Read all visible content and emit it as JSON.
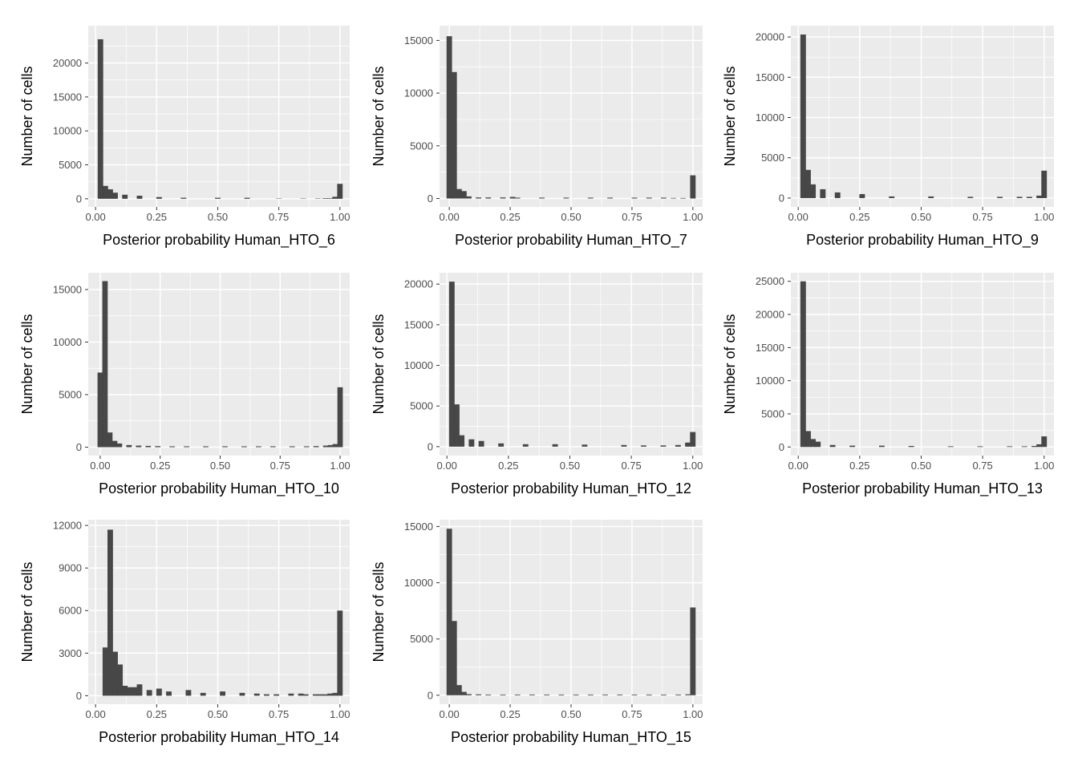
{
  "chart_data": [
    {
      "type": "bar",
      "xlabel": "Posterior probability Human_HTO_6",
      "ylabel": "Number of cells",
      "xlim": [
        -0.03,
        1.04
      ],
      "ylim": [
        -1200,
        25500
      ],
      "xticks": [
        "0.00",
        "0.25",
        "0.50",
        "0.75",
        "1.00"
      ],
      "yticks": [
        0,
        5000,
        10000,
        15000,
        20000
      ],
      "grid": true,
      "bins": [
        [
          0.02,
          23500
        ],
        [
          0.04,
          1900
        ],
        [
          0.06,
          1400
        ],
        [
          0.08,
          900
        ],
        [
          0.12,
          600
        ],
        [
          0.18,
          450
        ],
        [
          0.26,
          250
        ],
        [
          0.36,
          150
        ],
        [
          0.5,
          150
        ],
        [
          0.62,
          150
        ],
        [
          0.75,
          50
        ],
        [
          0.85,
          50
        ],
        [
          0.91,
          50
        ],
        [
          0.94,
          80
        ],
        [
          0.96,
          80
        ],
        [
          0.98,
          300
        ],
        [
          1.0,
          2200
        ]
      ]
    },
    {
      "type": "bar",
      "xlabel": "Posterior probability Human_HTO_7",
      "ylabel": "Number of cells",
      "xlim": [
        -0.04,
        1.04
      ],
      "ylim": [
        -800,
        16400
      ],
      "xticks": [
        "0.00",
        "0.25",
        "0.50",
        "0.75",
        "1.00"
      ],
      "yticks": [
        0,
        5000,
        10000,
        15000
      ],
      "grid": true,
      "bins": [
        [
          0.0,
          15400
        ],
        [
          0.02,
          12000
        ],
        [
          0.04,
          900
        ],
        [
          0.06,
          700
        ],
        [
          0.08,
          200
        ],
        [
          0.12,
          100
        ],
        [
          0.16,
          100
        ],
        [
          0.22,
          100
        ],
        [
          0.26,
          150
        ],
        [
          0.28,
          80
        ],
        [
          0.38,
          80
        ],
        [
          0.48,
          80
        ],
        [
          0.58,
          80
        ],
        [
          0.66,
          80
        ],
        [
          0.76,
          80
        ],
        [
          0.82,
          80
        ],
        [
          0.88,
          80
        ],
        [
          0.92,
          50
        ],
        [
          0.96,
          50
        ],
        [
          1.0,
          2200
        ]
      ]
    },
    {
      "type": "bar",
      "xlabel": "Posterior probability Human_HTO_9",
      "ylabel": "Number of cells",
      "xlim": [
        -0.03,
        1.04
      ],
      "ylim": [
        -1100,
        21400
      ],
      "xticks": [
        "0.00",
        "0.25",
        "0.50",
        "0.75",
        "1.00"
      ],
      "yticks": [
        0,
        5000,
        10000,
        15000,
        20000
      ],
      "grid": true,
      "bins": [
        [
          0.02,
          20300
        ],
        [
          0.04,
          3500
        ],
        [
          0.06,
          1700
        ],
        [
          0.1,
          1100
        ],
        [
          0.16,
          700
        ],
        [
          0.26,
          500
        ],
        [
          0.38,
          200
        ],
        [
          0.54,
          200
        ],
        [
          0.7,
          150
        ],
        [
          0.82,
          150
        ],
        [
          0.9,
          150
        ],
        [
          0.94,
          150
        ],
        [
          0.98,
          300
        ],
        [
          1.0,
          3400
        ]
      ]
    },
    {
      "type": "bar",
      "xlabel": "Posterior probability Human_HTO_10",
      "ylabel": "Number of cells",
      "xlim": [
        -0.05,
        1.04
      ],
      "ylim": [
        -800,
        16600
      ],
      "xticks": [
        "0.00",
        "0.25",
        "0.50",
        "0.75",
        "1.00"
      ],
      "yticks": [
        0,
        5000,
        10000,
        15000
      ],
      "grid": true,
      "bins": [
        [
          0.0,
          7100
        ],
        [
          0.02,
          15800
        ],
        [
          0.04,
          1400
        ],
        [
          0.06,
          600
        ],
        [
          0.08,
          350
        ],
        [
          0.12,
          200
        ],
        [
          0.16,
          150
        ],
        [
          0.2,
          120
        ],
        [
          0.24,
          100
        ],
        [
          0.3,
          80
        ],
        [
          0.36,
          80
        ],
        [
          0.44,
          80
        ],
        [
          0.52,
          80
        ],
        [
          0.6,
          80
        ],
        [
          0.66,
          80
        ],
        [
          0.72,
          80
        ],
        [
          0.8,
          80
        ],
        [
          0.86,
          80
        ],
        [
          0.9,
          100
        ],
        [
          0.94,
          150
        ],
        [
          0.96,
          200
        ],
        [
          0.98,
          300
        ],
        [
          1.0,
          5700
        ]
      ]
    },
    {
      "type": "bar",
      "xlabel": "Posterior probability Human_HTO_12",
      "ylabel": "Number of cells",
      "xlim": [
        -0.03,
        1.04
      ],
      "ylim": [
        -1100,
        21400
      ],
      "xticks": [
        "0.00",
        "0.25",
        "0.50",
        "0.75",
        "1.00"
      ],
      "yticks": [
        0,
        5000,
        10000,
        15000,
        20000
      ],
      "grid": true,
      "bins": [
        [
          0.02,
          20300
        ],
        [
          0.04,
          5200
        ],
        [
          0.06,
          1400
        ],
        [
          0.1,
          900
        ],
        [
          0.14,
          700
        ],
        [
          0.22,
          400
        ],
        [
          0.32,
          300
        ],
        [
          0.44,
          300
        ],
        [
          0.56,
          250
        ],
        [
          0.72,
          200
        ],
        [
          0.8,
          150
        ],
        [
          0.88,
          150
        ],
        [
          0.94,
          200
        ],
        [
          0.98,
          500
        ],
        [
          1.0,
          1800
        ]
      ]
    },
    {
      "type": "bar",
      "xlabel": "Posterior probability Human_HTO_13",
      "ylabel": "Number of cells",
      "xlim": [
        -0.03,
        1.04
      ],
      "ylim": [
        -1300,
        26300
      ],
      "xticks": [
        "0.00",
        "0.25",
        "0.50",
        "0.75",
        "1.00"
      ],
      "yticks": [
        0,
        5000,
        10000,
        15000,
        20000,
        25000
      ],
      "grid": true,
      "bins": [
        [
          0.02,
          25000
        ],
        [
          0.04,
          2400
        ],
        [
          0.06,
          1200
        ],
        [
          0.08,
          800
        ],
        [
          0.14,
          300
        ],
        [
          0.22,
          200
        ],
        [
          0.34,
          200
        ],
        [
          0.46,
          150
        ],
        [
          0.62,
          100
        ],
        [
          0.74,
          100
        ],
        [
          0.86,
          100
        ],
        [
          0.92,
          100
        ],
        [
          0.96,
          150
        ],
        [
          0.98,
          400
        ],
        [
          1.0,
          1600
        ]
      ]
    },
    {
      "type": "bar",
      "xlabel": "Posterior probability Human_HTO_14",
      "ylabel": "Number of cells",
      "xlim": [
        -0.03,
        1.04
      ],
      "ylim": [
        -600,
        12400
      ],
      "xticks": [
        "0.00",
        "0.25",
        "0.50",
        "0.75",
        "1.00"
      ],
      "yticks": [
        0,
        3000,
        6000,
        9000,
        12000
      ],
      "grid": true,
      "bins": [
        [
          0.04,
          3400
        ],
        [
          0.06,
          11700
        ],
        [
          0.08,
          3100
        ],
        [
          0.1,
          2200
        ],
        [
          0.12,
          700
        ],
        [
          0.14,
          600
        ],
        [
          0.16,
          600
        ],
        [
          0.18,
          800
        ],
        [
          0.22,
          400
        ],
        [
          0.26,
          500
        ],
        [
          0.3,
          300
        ],
        [
          0.38,
          400
        ],
        [
          0.44,
          200
        ],
        [
          0.52,
          300
        ],
        [
          0.6,
          200
        ],
        [
          0.66,
          150
        ],
        [
          0.7,
          100
        ],
        [
          0.74,
          100
        ],
        [
          0.8,
          150
        ],
        [
          0.84,
          150
        ],
        [
          0.86,
          100
        ],
        [
          0.9,
          100
        ],
        [
          0.92,
          100
        ],
        [
          0.94,
          100
        ],
        [
          0.96,
          150
        ],
        [
          0.98,
          200
        ],
        [
          1.0,
          6000
        ]
      ]
    },
    {
      "type": "bar",
      "xlabel": "Posterior probability Human_HTO_15",
      "ylabel": "Number of cells",
      "xlim": [
        -0.04,
        1.04
      ],
      "ylim": [
        -800,
        15600
      ],
      "xticks": [
        "0.00",
        "0.25",
        "0.50",
        "0.75",
        "1.00"
      ],
      "yticks": [
        0,
        5000,
        10000,
        15000
      ],
      "grid": true,
      "bins": [
        [
          0.0,
          14800
        ],
        [
          0.02,
          6600
        ],
        [
          0.04,
          900
        ],
        [
          0.06,
          300
        ],
        [
          0.08,
          100
        ],
        [
          0.12,
          80
        ],
        [
          0.16,
          60
        ],
        [
          0.22,
          60
        ],
        [
          0.28,
          60
        ],
        [
          0.34,
          60
        ],
        [
          0.4,
          60
        ],
        [
          0.46,
          60
        ],
        [
          0.52,
          60
        ],
        [
          0.58,
          60
        ],
        [
          0.64,
          60
        ],
        [
          0.7,
          60
        ],
        [
          0.76,
          60
        ],
        [
          0.82,
          60
        ],
        [
          0.88,
          60
        ],
        [
          0.94,
          60
        ],
        [
          0.98,
          80
        ],
        [
          1.0,
          7800
        ]
      ]
    }
  ],
  "colors": {
    "panel": "#EBEBEB",
    "grid": "#FFFFFF",
    "bar": "#474747",
    "text": "#000000",
    "tick": "#4D4D4D"
  }
}
